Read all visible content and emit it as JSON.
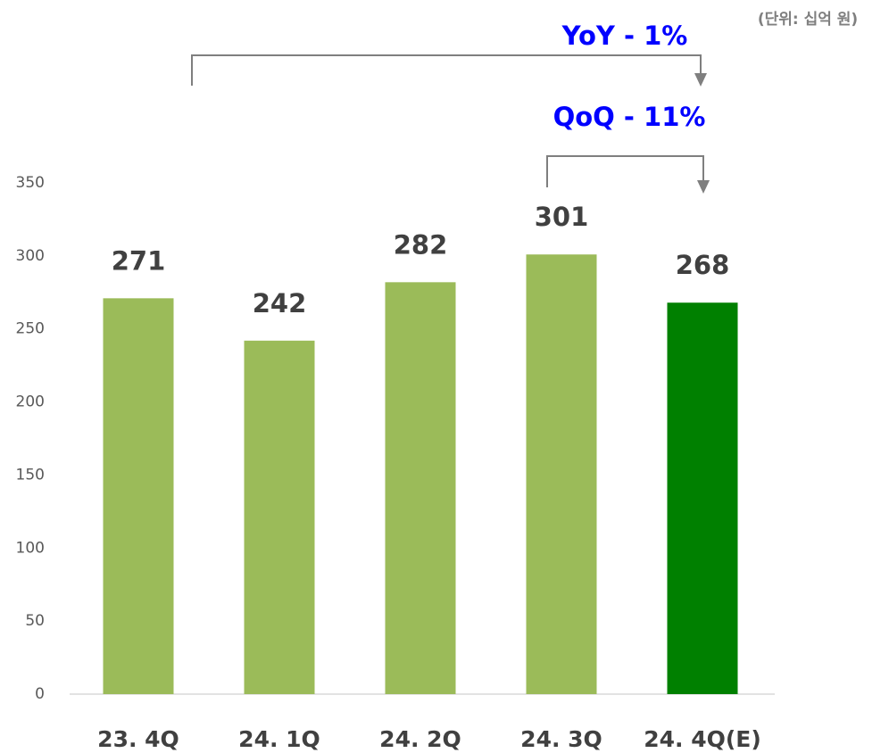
{
  "chart_data": {
    "type": "bar",
    "unit_note": "(단위: 십억 원)",
    "annotations": [
      "YoY - 1%",
      "QoQ - 11%"
    ],
    "categories": [
      "23. 4Q",
      "24. 1Q",
      "24. 2Q",
      "24. 3Q",
      "24. 4Q(E)"
    ],
    "values": [
      271,
      242,
      282,
      301,
      268
    ],
    "colors": [
      "#9bbb59",
      "#9bbb59",
      "#9bbb59",
      "#9bbb59",
      "#008000"
    ],
    "ylim": [
      0,
      350
    ],
    "yticks": [
      0,
      50,
      100,
      150,
      200,
      250,
      300,
      350
    ],
    "grid": false
  }
}
